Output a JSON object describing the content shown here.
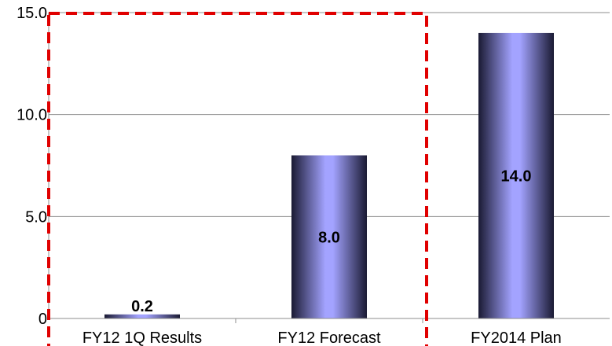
{
  "chart_data": {
    "type": "bar",
    "categories": [
      "FY12 1Q Results",
      "FY12 Forecast",
      "FY2014 Plan"
    ],
    "values": [
      0.2,
      8.0,
      14.0
    ],
    "value_labels": [
      "0.2",
      "8.0",
      "14.0"
    ],
    "yticks": [
      {
        "value": 0,
        "label": "0"
      },
      {
        "value": 5,
        "label": "5.0"
      },
      {
        "value": 10,
        "label": "10.0"
      },
      {
        "value": 15,
        "label": "15.0"
      }
    ],
    "ylim": [
      0,
      15
    ],
    "grid": true,
    "title": "",
    "xlabel": "",
    "ylabel": "",
    "highlight": {
      "categories": [
        "FY12 1Q Results",
        "FY12 Forecast"
      ],
      "style": "dashed",
      "color": "#e00000"
    },
    "colors": {
      "bar_light": "#a3a3ff",
      "bar_dark": "#1a1a33",
      "grid": "#8c8c8c",
      "axis": "#8c8c8c"
    }
  }
}
